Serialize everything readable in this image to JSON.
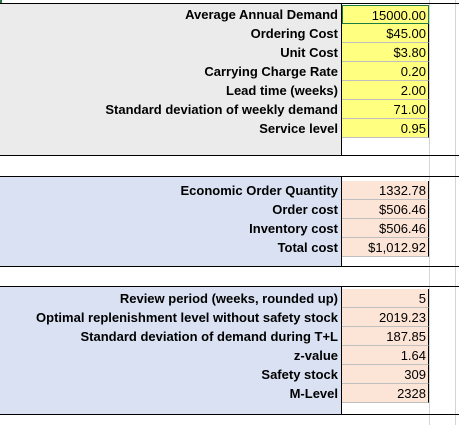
{
  "inputs": [
    {
      "label": "Average Annual Demand",
      "value": "15000.00"
    },
    {
      "label": "Ordering Cost",
      "value": "$45.00"
    },
    {
      "label": "Unit Cost",
      "value": "$3.80"
    },
    {
      "label": "Carrying Charge Rate",
      "value": "0.20"
    },
    {
      "label": "Lead time (weeks)",
      "value": "2.00"
    },
    {
      "label": "Standard deviation of weekly demand",
      "value": "71.00"
    },
    {
      "label": "Service level",
      "value": "0.95"
    }
  ],
  "eoq": [
    {
      "label": "Economic Order Quantity",
      "value": "1332.78"
    },
    {
      "label": "Order cost",
      "value": "$506.46"
    },
    {
      "label": "Inventory cost",
      "value": "$506.46"
    },
    {
      "label": "Total cost",
      "value": "$1,012.92"
    }
  ],
  "review": [
    {
      "label": "Review period (weeks, rounded up)",
      "value": "5"
    },
    {
      "label": "Optimal replenishment level without safety stock",
      "value": "2019.23"
    },
    {
      "label": "Standard deviation of demand during T+L",
      "value": "187.85"
    },
    {
      "label": "z-value",
      "value": "1.64"
    },
    {
      "label": "Safety stock",
      "value": "309"
    },
    {
      "label": "M-Level",
      "value": "2328"
    }
  ]
}
